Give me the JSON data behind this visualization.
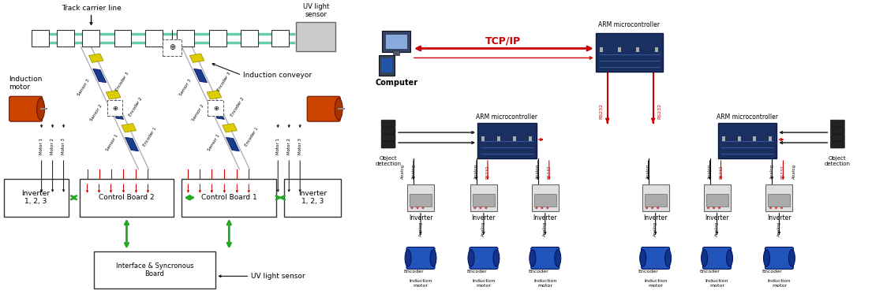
{
  "fig_width": 11.05,
  "fig_height": 3.73,
  "bg_color": "#ffffff",
  "left": {
    "track_carrier_line": "Track carrier line",
    "uv_sensor_top": "UV light\nsensor",
    "uv_sensor_bottom": "UV light sensor",
    "induction_motor": "Induction\nmotor",
    "induction_conveyor": "Induction conveyor",
    "inverter_left": "Inverter\n1, 2, 3",
    "inverter_right": "Inverter\n1, 2, 3",
    "control_board2": "Control Board 2",
    "control_board1": "Control Board 1",
    "interface_board": "Interface & Syncronous\nBoard"
  },
  "right": {
    "computer": "Computer",
    "tcp_ip": "TCP/IP",
    "arm_top": "ARM microcontroller",
    "arm_mid_left": "ARM microcontroller",
    "arm_mid_right": "ARM microcontroller",
    "inverter": "Inverter",
    "encoder": "Encoder",
    "induction_motor": "Induction\nmotor",
    "object_detection": "Object\ndetection",
    "rs232": "RS232",
    "analog": "Analog"
  },
  "colors": {
    "red": "#cc0000",
    "green": "#22aa22",
    "black": "#111111",
    "white": "#ffffff",
    "gray_box": "#dddddd",
    "gray_dark": "#888888",
    "teal": "#66ccaa",
    "yellow": "#ddcc00",
    "blue_dark": "#1a3a8a",
    "blue_motor": "#2255bb",
    "orange_motor": "#cc4400",
    "arm_board": "#1a3060"
  }
}
